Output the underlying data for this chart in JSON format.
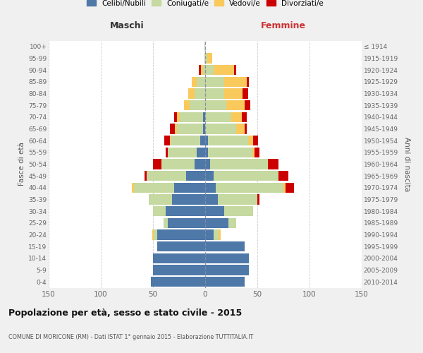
{
  "age_groups": [
    "0-4",
    "5-9",
    "10-14",
    "15-19",
    "20-24",
    "25-29",
    "30-34",
    "35-39",
    "40-44",
    "45-49",
    "50-54",
    "55-59",
    "60-64",
    "65-69",
    "70-74",
    "75-79",
    "80-84",
    "85-89",
    "90-94",
    "95-99",
    "100+"
  ],
  "birth_years": [
    "2010-2014",
    "2005-2009",
    "2000-2004",
    "1995-1999",
    "1990-1994",
    "1985-1989",
    "1980-1984",
    "1975-1979",
    "1970-1974",
    "1965-1969",
    "1960-1964",
    "1955-1959",
    "1950-1954",
    "1945-1949",
    "1940-1944",
    "1935-1939",
    "1930-1934",
    "1925-1929",
    "1920-1924",
    "1915-1919",
    "≤ 1914"
  ],
  "maschi": {
    "celibi": [
      52,
      50,
      50,
      46,
      46,
      36,
      38,
      32,
      30,
      18,
      10,
      8,
      5,
      2,
      2,
      0,
      0,
      0,
      0,
      0,
      0
    ],
    "coniugati": [
      0,
      0,
      0,
      0,
      3,
      4,
      12,
      22,
      38,
      38,
      32,
      28,
      28,
      25,
      22,
      15,
      10,
      8,
      2,
      1,
      1
    ],
    "vedovi": [
      0,
      0,
      0,
      0,
      2,
      0,
      0,
      0,
      2,
      0,
      0,
      0,
      1,
      2,
      3,
      5,
      6,
      5,
      2,
      0,
      0
    ],
    "divorziati": [
      0,
      0,
      0,
      0,
      0,
      0,
      0,
      0,
      0,
      2,
      8,
      2,
      5,
      5,
      3,
      0,
      0,
      0,
      2,
      0,
      0
    ]
  },
  "femmine": {
    "nubili": [
      38,
      42,
      42,
      38,
      8,
      22,
      18,
      12,
      10,
      8,
      5,
      3,
      3,
      0,
      0,
      0,
      0,
      0,
      0,
      0,
      0
    ],
    "coniugate": [
      0,
      0,
      0,
      0,
      5,
      8,
      28,
      38,
      65,
      62,
      55,
      42,
      38,
      30,
      25,
      20,
      18,
      18,
      8,
      2,
      0
    ],
    "vedove": [
      0,
      0,
      0,
      0,
      2,
      0,
      0,
      0,
      2,
      0,
      0,
      2,
      5,
      8,
      10,
      18,
      18,
      22,
      20,
      5,
      0
    ],
    "divorziate": [
      0,
      0,
      0,
      0,
      0,
      0,
      0,
      2,
      8,
      10,
      10,
      5,
      5,
      2,
      5,
      5,
      5,
      2,
      2,
      0,
      0
    ]
  },
  "colors": {
    "celibi": "#4e78a8",
    "coniugati": "#c5d9a0",
    "vedovi": "#f9c95c",
    "divorziati": "#cc0000"
  },
  "legend_labels": [
    "Celibi/Nubili",
    "Coniugati/e",
    "Vedovi/e",
    "Divorziati/e"
  ],
  "title": "Popolazione per età, sesso e stato civile - 2015",
  "subtitle": "COMUNE DI MORICONE (RM) - Dati ISTAT 1° gennaio 2015 - Elaborazione TUTTITALIA.IT",
  "label_maschi": "Maschi",
  "label_femmine": "Femmine",
  "ylabel_left": "Fasce di età",
  "ylabel_right": "Anni di nascita",
  "xlim": 150,
  "bg_color": "#f0f0f0",
  "plot_bg": "#ffffff",
  "grid_color": "#cccccc"
}
